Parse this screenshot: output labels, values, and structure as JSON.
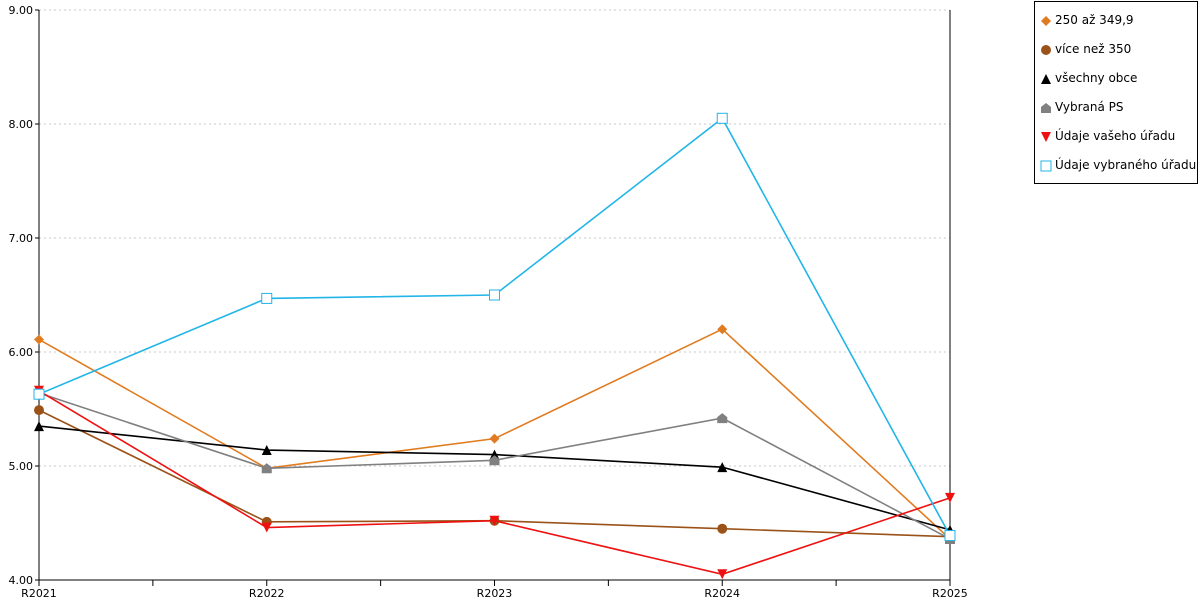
{
  "chart_data": {
    "type": "line",
    "categories": [
      "R2021",
      "R2022",
      "R2023",
      "R2024",
      "R2025"
    ],
    "ylim": [
      4.0,
      9.0
    ],
    "yticks": [
      "4.00",
      "5.00",
      "6.00",
      "7.00",
      "8.00",
      "9.00"
    ],
    "grid": true,
    "legend_position": "right",
    "series": [
      {
        "name": "250 až 349,9",
        "color": "#e07b20",
        "marker": "diamond",
        "values": [
          6.11,
          4.98,
          5.24,
          6.2,
          4.36
        ]
      },
      {
        "name": "více než 350",
        "color": "#9a5218",
        "marker": "circle",
        "values": [
          5.49,
          4.51,
          4.52,
          4.45,
          4.38
        ]
      },
      {
        "name": "všechny obce",
        "color": "#000000",
        "marker": "triangle-up",
        "values": [
          5.35,
          5.14,
          5.1,
          4.99,
          4.44
        ]
      },
      {
        "name": "Vybraná PS",
        "color": "#808080",
        "marker": "house",
        "values": [
          5.64,
          4.98,
          5.05,
          5.42,
          4.36
        ]
      },
      {
        "name": "Údaje vašeho úřadu",
        "color": "#ee1111",
        "marker": "triangle-down",
        "values": [
          5.66,
          4.46,
          4.52,
          4.05,
          4.72
        ]
      },
      {
        "name": "Údaje vybraného úřadu",
        "color": "#22b5e8",
        "marker": "square-open",
        "values": [
          5.63,
          6.47,
          6.5,
          8.05,
          4.39
        ]
      }
    ]
  }
}
